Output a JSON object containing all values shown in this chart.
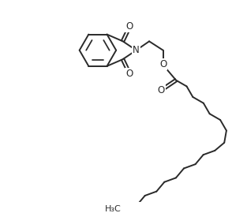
{
  "bg_color": "#ffffff",
  "line_color": "#2a2a2a",
  "line_width": 1.4,
  "font_size": 8.5,
  "figsize": [
    3.13,
    2.7
  ],
  "dpi": 100,
  "xlim": [
    0,
    9.5
  ],
  "ylim": [
    0,
    9.0
  ]
}
